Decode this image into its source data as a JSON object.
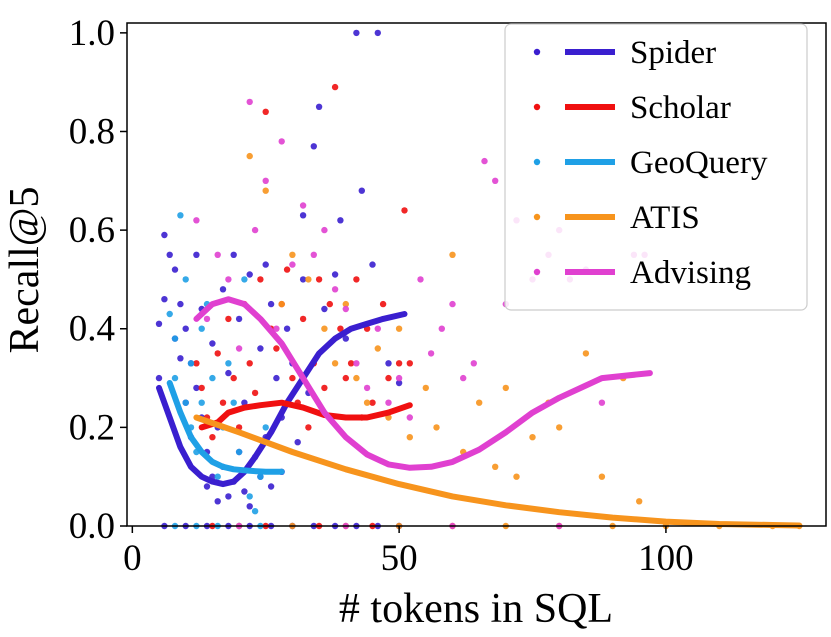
{
  "chart_data": {
    "type": "scatter",
    "xlabel": "# tokens in SQL",
    "ylabel": "Recall@5",
    "xlim": [
      -1,
      130
    ],
    "ylim": [
      0.0,
      1.02
    ],
    "xticks": [
      0,
      50,
      100
    ],
    "yticks": [
      0.0,
      0.2,
      0.4,
      0.6,
      0.8,
      1.0
    ],
    "xtick_labels": [
      "0",
      "50",
      "100"
    ],
    "ytick_labels": [
      "0.0",
      "0.2",
      "0.4",
      "0.6",
      "0.8",
      "1.0"
    ],
    "legend_position": "top-right",
    "series": [
      {
        "name": "Spider",
        "color": "#3a1fcf",
        "points": [
          [
            5,
            0.41
          ],
          [
            5,
            0.3
          ],
          [
            6,
            0.59
          ],
          [
            6,
            0.46
          ],
          [
            7,
            0.55
          ],
          [
            8,
            0.52
          ],
          [
            8,
            0.38
          ],
          [
            9,
            0.45
          ],
          [
            9,
            0.34
          ],
          [
            10,
            0.25
          ],
          [
            10,
            0.4
          ],
          [
            11,
            0.18
          ],
          [
            11,
            0.33
          ],
          [
            12,
            0.55
          ],
          [
            12,
            0.28
          ],
          [
            13,
            0.22
          ],
          [
            13,
            0.44
          ],
          [
            14,
            0.15
          ],
          [
            14,
            0.08
          ],
          [
            15,
            0.37
          ],
          [
            15,
            0.1
          ],
          [
            16,
            0.05
          ],
          [
            16,
            0.2
          ],
          [
            17,
            0.48
          ],
          [
            17,
            0.12
          ],
          [
            18,
            0.31
          ],
          [
            18,
            0.06
          ],
          [
            19,
            0.55
          ],
          [
            19,
            0.09
          ],
          [
            20,
            0.15
          ],
          [
            20,
            0.42
          ],
          [
            21,
            0.25
          ],
          [
            21,
            0.07
          ],
          [
            22,
            0.51
          ],
          [
            22,
            0.04
          ],
          [
            23,
            0.14
          ],
          [
            24,
            0.36
          ],
          [
            24,
            0.1
          ],
          [
            25,
            0.53
          ],
          [
            25,
            0.18
          ],
          [
            26,
            0.45
          ],
          [
            26,
            0.08
          ],
          [
            27,
            0.3
          ],
          [
            28,
            0.11
          ],
          [
            28,
            0.22
          ],
          [
            29,
            0.4
          ],
          [
            30,
            0.33
          ],
          [
            31,
            0.17
          ],
          [
            32,
            0.63
          ],
          [
            32,
            0.5
          ],
          [
            33,
            0.27
          ],
          [
            34,
            0.77
          ],
          [
            35,
            0.85
          ],
          [
            36,
            0.44
          ],
          [
            38,
            0.51
          ],
          [
            39,
            0.62
          ],
          [
            40,
            0.38
          ],
          [
            42,
            1.0
          ],
          [
            43,
            0.68
          ],
          [
            45,
            0.53
          ],
          [
            46,
            1.0
          ],
          [
            48,
            0.33
          ],
          [
            50,
            0.29
          ],
          [
            6,
            0.0
          ],
          [
            10,
            0.0
          ],
          [
            14,
            0.0
          ],
          [
            18,
            0.0
          ],
          [
            22,
            0.0
          ],
          [
            26,
            0.0
          ],
          [
            30,
            0.0
          ],
          [
            34,
            0.0
          ],
          [
            38,
            0.0
          ],
          [
            42,
            0.0
          ],
          [
            46,
            0.0
          ],
          [
            50,
            0.0
          ]
        ],
        "trend": [
          [
            5,
            0.28
          ],
          [
            7,
            0.22
          ],
          [
            9,
            0.16
          ],
          [
            11,
            0.12
          ],
          [
            13,
            0.1
          ],
          [
            15,
            0.09
          ],
          [
            17,
            0.085
          ],
          [
            19,
            0.09
          ],
          [
            21,
            0.11
          ],
          [
            23,
            0.14
          ],
          [
            26,
            0.19
          ],
          [
            29,
            0.25
          ],
          [
            32,
            0.3
          ],
          [
            35,
            0.35
          ],
          [
            38,
            0.38
          ],
          [
            41,
            0.4
          ],
          [
            44,
            0.41
          ],
          [
            47,
            0.42
          ],
          [
            51,
            0.43
          ]
        ]
      },
      {
        "name": "Scholar",
        "color": "#f01010",
        "points": [
          [
            12,
            0.33
          ],
          [
            13,
            0.28
          ],
          [
            14,
            0.22
          ],
          [
            15,
            0.18
          ],
          [
            16,
            0.35
          ],
          [
            17,
            0.25
          ],
          [
            18,
            0.42
          ],
          [
            19,
            0.3
          ],
          [
            20,
            0.2
          ],
          [
            21,
            0.45
          ],
          [
            22,
            0.33
          ],
          [
            23,
            0.27
          ],
          [
            24,
            0.5
          ],
          [
            25,
            0.84
          ],
          [
            26,
            0.4
          ],
          [
            27,
            0.36
          ],
          [
            28,
            0.45
          ],
          [
            29,
            0.52
          ],
          [
            30,
            0.3
          ],
          [
            31,
            0.25
          ],
          [
            32,
            0.42
          ],
          [
            33,
            0.2
          ],
          [
            34,
            0.33
          ],
          [
            35,
            0.5
          ],
          [
            36,
            0.28
          ],
          [
            37,
            0.45
          ],
          [
            38,
            0.89
          ],
          [
            39,
            0.4
          ],
          [
            40,
            0.3
          ],
          [
            41,
            0.33
          ],
          [
            42,
            0.5
          ],
          [
            43,
            0.22
          ],
          [
            44,
            0.4
          ],
          [
            45,
            0.25
          ],
          [
            47,
            0.45
          ],
          [
            48,
            0.3
          ],
          [
            50,
            0.33
          ],
          [
            51,
            0.64
          ],
          [
            52,
            0.33
          ],
          [
            15,
            0.0
          ],
          [
            25,
            0.0
          ],
          [
            35,
            0.0
          ],
          [
            45,
            0.0
          ]
        ],
        "trend": [
          [
            13,
            0.2
          ],
          [
            16,
            0.21
          ],
          [
            18,
            0.23
          ],
          [
            21,
            0.24
          ],
          [
            24,
            0.245
          ],
          [
            28,
            0.25
          ],
          [
            32,
            0.24
          ],
          [
            36,
            0.225
          ],
          [
            40,
            0.22
          ],
          [
            44,
            0.22
          ],
          [
            48,
            0.23
          ],
          [
            52,
            0.245
          ]
        ]
      },
      {
        "name": "GeoQuery",
        "color": "#1fa0e6",
        "points": [
          [
            7,
            0.43
          ],
          [
            8,
            0.38
          ],
          [
            8,
            0.3
          ],
          [
            9,
            0.63
          ],
          [
            10,
            0.25
          ],
          [
            10,
            0.5
          ],
          [
            11,
            0.2
          ],
          [
            11,
            0.33
          ],
          [
            12,
            0.15
          ],
          [
            13,
            0.4
          ],
          [
            13,
            0.25
          ],
          [
            14,
            0.45
          ],
          [
            15,
            0.3
          ],
          [
            16,
            0.1
          ],
          [
            17,
            0.2
          ],
          [
            18,
            0.33
          ],
          [
            19,
            0.25
          ],
          [
            20,
            0.15
          ],
          [
            21,
            0.5
          ],
          [
            22,
            0.06
          ],
          [
            23,
            0.03
          ],
          [
            24,
            0.1
          ],
          [
            25,
            0.2
          ],
          [
            8,
            0.0
          ],
          [
            12,
            0.0
          ],
          [
            16,
            0.0
          ],
          [
            20,
            0.0
          ],
          [
            24,
            0.0
          ]
        ],
        "trend": [
          [
            7,
            0.29
          ],
          [
            9,
            0.23
          ],
          [
            11,
            0.18
          ],
          [
            13,
            0.15
          ],
          [
            15,
            0.13
          ],
          [
            17,
            0.12
          ],
          [
            19,
            0.115
          ],
          [
            22,
            0.112
          ],
          [
            25,
            0.11
          ],
          [
            28,
            0.11
          ]
        ]
      },
      {
        "name": "ATIS",
        "color": "#f7941d",
        "points": [
          [
            22,
            0.75
          ],
          [
            25,
            0.68
          ],
          [
            28,
            0.45
          ],
          [
            30,
            0.55
          ],
          [
            33,
            0.5
          ],
          [
            36,
            0.4
          ],
          [
            38,
            0.33
          ],
          [
            40,
            0.45
          ],
          [
            42,
            0.3
          ],
          [
            44,
            0.25
          ],
          [
            46,
            0.36
          ],
          [
            48,
            0.22
          ],
          [
            50,
            0.4
          ],
          [
            52,
            0.18
          ],
          [
            55,
            0.28
          ],
          [
            57,
            0.2
          ],
          [
            60,
            0.55
          ],
          [
            62,
            0.15
          ],
          [
            65,
            0.25
          ],
          [
            68,
            0.12
          ],
          [
            70,
            0.28
          ],
          [
            72,
            0.1
          ],
          [
            75,
            0.18
          ],
          [
            78,
            0.25
          ],
          [
            80,
            0.2
          ],
          [
            85,
            0.35
          ],
          [
            88,
            0.1
          ],
          [
            92,
            0.3
          ],
          [
            95,
            0.05
          ],
          [
            20,
            0.0
          ],
          [
            30,
            0.0
          ],
          [
            40,
            0.0
          ],
          [
            50,
            0.0
          ],
          [
            60,
            0.0
          ],
          [
            70,
            0.0
          ],
          [
            80,
            0.0
          ],
          [
            90,
            0.0
          ],
          [
            100,
            0.0
          ],
          [
            110,
            0.0
          ],
          [
            120,
            0.0
          ],
          [
            125,
            0.0
          ]
        ],
        "trend": [
          [
            12,
            0.22
          ],
          [
            20,
            0.19
          ],
          [
            30,
            0.15
          ],
          [
            40,
            0.115
          ],
          [
            50,
            0.085
          ],
          [
            60,
            0.06
          ],
          [
            70,
            0.042
          ],
          [
            80,
            0.028
          ],
          [
            90,
            0.017
          ],
          [
            100,
            0.009
          ],
          [
            110,
            0.004
          ],
          [
            120,
            0.002
          ],
          [
            125,
            0.001
          ]
        ]
      },
      {
        "name": "Advising",
        "color": "#e040d0",
        "points": [
          [
            12,
            0.62
          ],
          [
            14,
            0.42
          ],
          [
            16,
            0.55
          ],
          [
            18,
            0.5
          ],
          [
            20,
            0.36
          ],
          [
            22,
            0.86
          ],
          [
            23,
            0.6
          ],
          [
            25,
            0.7
          ],
          [
            27,
            0.4
          ],
          [
            28,
            0.78
          ],
          [
            30,
            0.53
          ],
          [
            32,
            0.65
          ],
          [
            34,
            0.55
          ],
          [
            36,
            0.6
          ],
          [
            38,
            0.48
          ],
          [
            40,
            0.44
          ],
          [
            42,
            0.33
          ],
          [
            44,
            0.28
          ],
          [
            46,
            0.4
          ],
          [
            48,
            0.25
          ],
          [
            50,
            0.3
          ],
          [
            52,
            0.22
          ],
          [
            54,
            0.5
          ],
          [
            56,
            0.35
          ],
          [
            58,
            0.4
          ],
          [
            60,
            0.45
          ],
          [
            62,
            0.3
          ],
          [
            64,
            0.33
          ],
          [
            66,
            0.74
          ],
          [
            68,
            0.7
          ],
          [
            70,
            0.45
          ],
          [
            72,
            0.62
          ],
          [
            75,
            0.5
          ],
          [
            78,
            0.55
          ],
          [
            80,
            0.6
          ],
          [
            82,
            0.5
          ],
          [
            85,
            0.52
          ],
          [
            88,
            0.25
          ],
          [
            94,
            0.55
          ],
          [
            96,
            0.55
          ],
          [
            20,
            0.0
          ],
          [
            40,
            0.0
          ],
          [
            60,
            0.0
          ],
          [
            80,
            0.0
          ]
        ],
        "trend": [
          [
            12,
            0.42
          ],
          [
            15,
            0.45
          ],
          [
            18,
            0.46
          ],
          [
            21,
            0.45
          ],
          [
            24,
            0.42
          ],
          [
            28,
            0.37
          ],
          [
            32,
            0.3
          ],
          [
            36,
            0.23
          ],
          [
            40,
            0.18
          ],
          [
            44,
            0.145
          ],
          [
            48,
            0.125
          ],
          [
            52,
            0.118
          ],
          [
            56,
            0.12
          ],
          [
            60,
            0.13
          ],
          [
            65,
            0.155
          ],
          [
            70,
            0.19
          ],
          [
            75,
            0.23
          ],
          [
            80,
            0.26
          ],
          [
            85,
            0.285
          ],
          [
            88,
            0.3
          ],
          [
            97,
            0.31
          ]
        ]
      }
    ]
  }
}
